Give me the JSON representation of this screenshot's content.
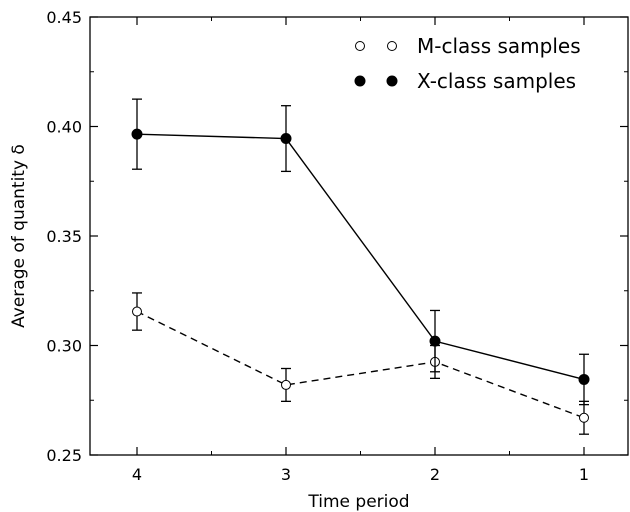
{
  "chart_data": {
    "type": "line",
    "title": "",
    "xlabel": "Time period",
    "ylabel": "Average of quantity δ",
    "categories": [
      "4",
      "3",
      "2",
      "1"
    ],
    "ylim": [
      0.25,
      0.45
    ],
    "yticks": [
      "0.25",
      "0.30",
      "0.35",
      "0.40",
      "0.45"
    ],
    "grid": false,
    "legend_position": "top-right",
    "series": [
      {
        "name": "M-class samples",
        "marker": "open-circle",
        "line_style": "dashed",
        "color": "#000000",
        "values": [
          0.3155,
          0.282,
          0.2925,
          0.267
        ],
        "error": [
          0.0085,
          0.0075,
          0.0075,
          0.0075
        ]
      },
      {
        "name": "X-class samples",
        "marker": "filled-circle",
        "line_style": "solid",
        "color": "#000000",
        "values": [
          0.3965,
          0.3945,
          0.302,
          0.2845
        ],
        "error": [
          0.016,
          0.015,
          0.014,
          0.0115
        ]
      }
    ]
  }
}
